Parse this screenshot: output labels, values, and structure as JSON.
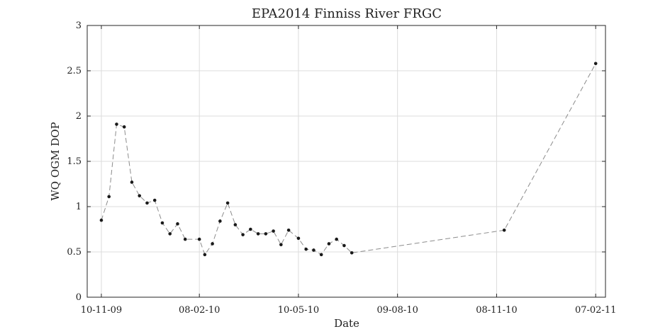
{
  "chart_data": {
    "type": "line",
    "title": "EPA2014 Finniss River FRGC",
    "xlabel": "Date",
    "ylabel": "WQ OGM DOP",
    "x_tick_labels": [
      "10-11-09",
      "08-02-10",
      "10-05-10",
      "09-08-10",
      "08-11-10",
      "07-02-11"
    ],
    "y_tick_labels": [
      "0",
      "0.5",
      "1",
      "1.5",
      "2",
      "2.5",
      "3"
    ],
    "y_ticks": [
      0,
      0.5,
      1,
      1.5,
      2,
      2.5,
      3
    ],
    "ylim": [
      0,
      3
    ],
    "xlim": [
      "2009-10-28",
      "2011-02-16"
    ],
    "x_ticks": [
      "2009-11-10",
      "2010-02-08",
      "2010-05-10",
      "2010-08-09",
      "2010-11-08",
      "2011-02-07"
    ],
    "grid": true,
    "series": [
      {
        "line_style": "dashed",
        "marker": "dot",
        "x": [
          "2009-11-10",
          "2009-11-17",
          "2009-11-24",
          "2009-12-01",
          "2009-12-08",
          "2009-12-15",
          "2009-12-22",
          "2009-12-29",
          "2010-01-05",
          "2010-01-12",
          "2010-01-19",
          "2010-01-26",
          "2010-02-08",
          "2010-02-13",
          "2010-02-20",
          "2010-02-27",
          "2010-03-06",
          "2010-03-13",
          "2010-03-20",
          "2010-03-27",
          "2010-04-03",
          "2010-04-10",
          "2010-04-17",
          "2010-04-24",
          "2010-05-01",
          "2010-05-10",
          "2010-05-17",
          "2010-05-24",
          "2010-05-31",
          "2010-06-07",
          "2010-06-14",
          "2010-06-21",
          "2010-06-28",
          "2010-11-15",
          "2011-02-07"
        ],
        "y": [
          0.85,
          1.11,
          1.91,
          1.88,
          1.27,
          1.12,
          1.04,
          1.07,
          0.82,
          0.7,
          0.81,
          0.64,
          0.64,
          0.47,
          0.59,
          0.84,
          1.04,
          0.8,
          0.69,
          0.75,
          0.7,
          0.7,
          0.73,
          0.58,
          0.74,
          0.65,
          0.53,
          0.52,
          0.47,
          0.59,
          0.64,
          0.57,
          0.49,
          0.74,
          2.58
        ]
      }
    ]
  }
}
